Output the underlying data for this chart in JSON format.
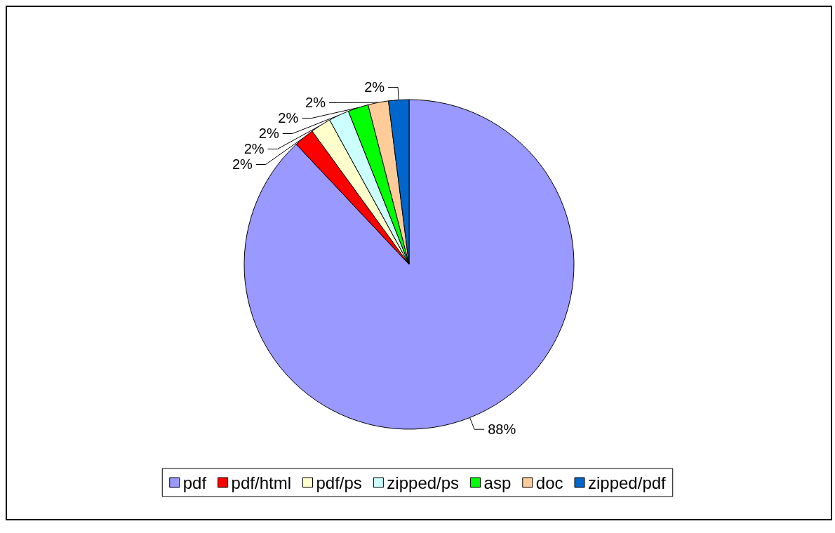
{
  "chart_data": {
    "type": "pie",
    "categories": [
      "pdf",
      "pdf/html",
      "pdf/ps",
      "zipped/ps",
      "asp",
      "doc",
      "zipped/pdf"
    ],
    "values": [
      88,
      2,
      2,
      2,
      2,
      2,
      2
    ],
    "colors": [
      "#9999ff",
      "#ff0000",
      "#ffffcc",
      "#ccffff",
      "#00ff00",
      "#ffcc99",
      "#0066cc"
    ],
    "value_labels": [
      "88%",
      "2%",
      "2%",
      "2%",
      "2%",
      "2%",
      "2%"
    ],
    "legend": "bottom"
  }
}
